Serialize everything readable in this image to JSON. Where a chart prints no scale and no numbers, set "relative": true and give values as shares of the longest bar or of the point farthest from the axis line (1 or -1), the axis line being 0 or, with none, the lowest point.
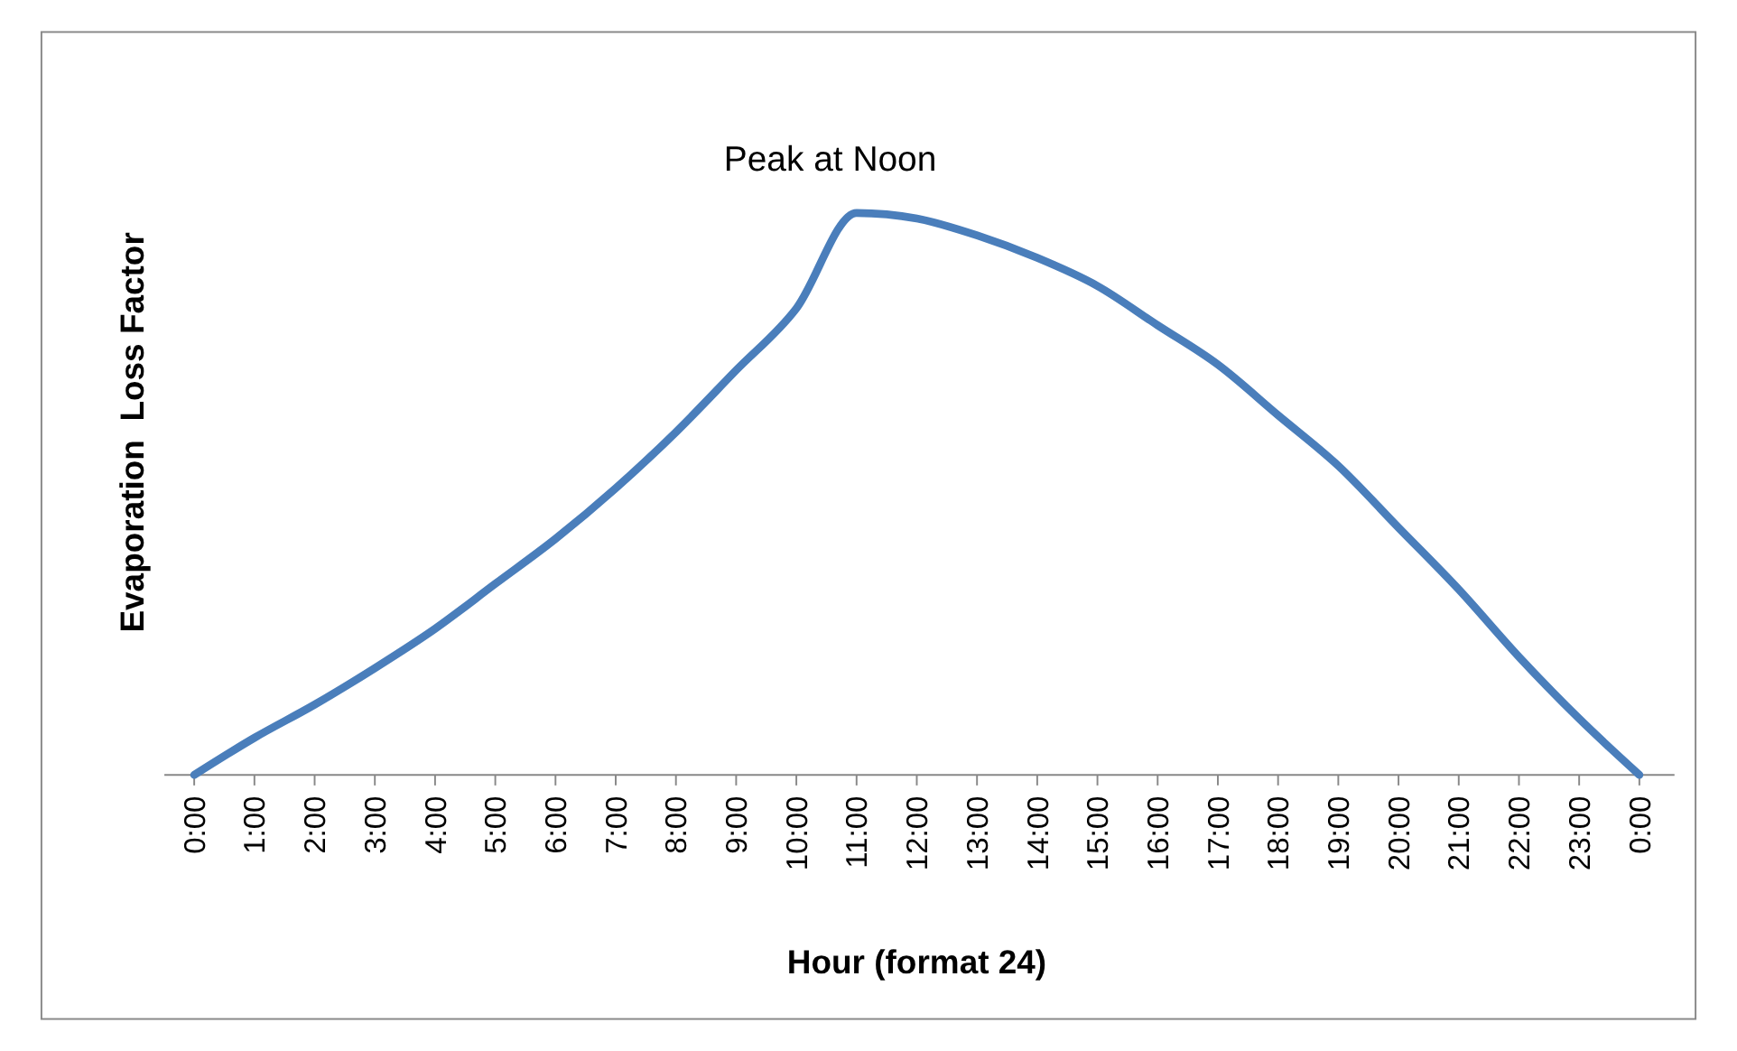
{
  "chart_data": {
    "type": "line",
    "relative": true,
    "xlabel": "Hour (format 24)",
    "ylabel": "Evaporation  Loss Factor",
    "annotations": [
      "Peak at Noon"
    ],
    "categories": [
      "0:00",
      "1:00",
      "2:00",
      "3:00",
      "4:00",
      "5:00",
      "6:00",
      "7:00",
      "8:00",
      "9:00",
      "10:00",
      "11:00",
      "12:00",
      "13:00",
      "14:00",
      "15:00",
      "16:00",
      "17:00",
      "18:00",
      "19:00",
      "20:00",
      "21:00",
      "22:00",
      "23:00",
      "0:00"
    ],
    "series": [
      {
        "color": "#4a7ebb",
        "values": [
          0,
          0.066,
          0.125,
          0.19,
          0.26,
          0.34,
          0.42,
          0.51,
          0.61,
          0.72,
          0.83,
          1,
          0.99,
          0.96,
          0.92,
          0.87,
          0.8,
          0.73,
          0.64,
          0.55,
          0.44,
          0.33,
          0.21,
          0.1,
          0
        ]
      }
    ],
    "marker": "none",
    "line_style": "solid"
  }
}
